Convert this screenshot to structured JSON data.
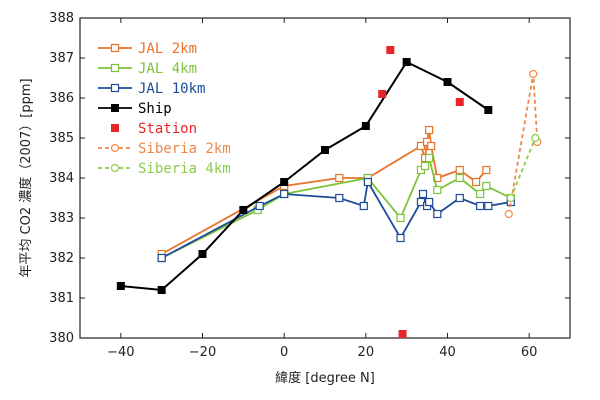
{
  "chart_data": {
    "type": "line",
    "title": "",
    "xlabel": "緯度 [degree N]",
    "ylabel": "年平均 CO2 濃度（2007）[ppm]",
    "xlim": [
      -50,
      70
    ],
    "ylim": [
      380,
      388
    ],
    "xticks": [
      -40,
      -20,
      0,
      20,
      40,
      60
    ],
    "yticks": [
      380,
      381,
      382,
      383,
      384,
      385,
      386,
      387,
      388
    ],
    "grid": false,
    "legend_position": "top-left",
    "series": [
      {
        "name": "JAL 2km",
        "color": "#e8732a",
        "marker": "open-square",
        "line": "solid",
        "x": [
          -30,
          0,
          13.5,
          20.5,
          33.5,
          34.5,
          35,
          35.5,
          36,
          37.5,
          43,
          47,
          49.5
        ],
        "y": [
          382.1,
          383.8,
          384.0,
          384.0,
          384.8,
          384.5,
          384.9,
          385.2,
          384.8,
          384.0,
          384.2,
          383.9,
          384.2
        ]
      },
      {
        "name": "JAL 4km",
        "color": "#7dc43a",
        "marker": "open-square",
        "line": "solid",
        "x": [
          -30,
          -6.5,
          0,
          20.5,
          28.5,
          33.5,
          34.5,
          35.5,
          37.5,
          43,
          48,
          49.5,
          55.5
        ],
        "y": [
          382.0,
          383.2,
          383.6,
          384.0,
          383.0,
          384.2,
          384.3,
          384.5,
          383.7,
          384.0,
          383.6,
          383.8,
          383.5
        ]
      },
      {
        "name": "JAL 10km",
        "color": "#1e4b9a",
        "marker": "open-square",
        "line": "solid",
        "x": [
          -30,
          -6,
          0,
          13.5,
          19.5,
          20.5,
          28.5,
          33.5,
          34,
          35,
          35.5,
          37.5,
          43,
          48,
          50,
          55.5
        ],
        "y": [
          382.0,
          383.3,
          383.6,
          383.5,
          383.3,
          383.9,
          382.5,
          383.4,
          383.6,
          383.3,
          383.4,
          383.1,
          383.5,
          383.3,
          383.3,
          383.4
        ]
      },
      {
        "name": "Ship",
        "color": "#000000",
        "marker": "filled-square",
        "line": "solid",
        "x": [
          -40,
          -30,
          -20,
          -10,
          0,
          10,
          20,
          30,
          40,
          50
        ],
        "y": [
          381.3,
          381.2,
          382.1,
          383.2,
          383.9,
          384.7,
          385.3,
          386.9,
          386.4,
          385.7
        ]
      },
      {
        "name": "Station",
        "color": "#e8262a",
        "marker": "filled-square",
        "line": "none",
        "x": [
          24,
          26,
          29,
          43
        ],
        "y": [
          386.1,
          387.2,
          380.1,
          385.9
        ]
      },
      {
        "name": "Siberia 2km",
        "color": "#f0884a",
        "marker": "open-circle",
        "line": "dashed",
        "x": [
          55,
          61,
          62
        ],
        "y": [
          383.1,
          386.6,
          384.9
        ]
      },
      {
        "name": "Siberia 4km",
        "color": "#8ccc4c",
        "marker": "open-circle",
        "line": "dashed",
        "x": [
          55.5,
          61.5
        ],
        "y": [
          383.5,
          385.0
        ]
      }
    ]
  }
}
